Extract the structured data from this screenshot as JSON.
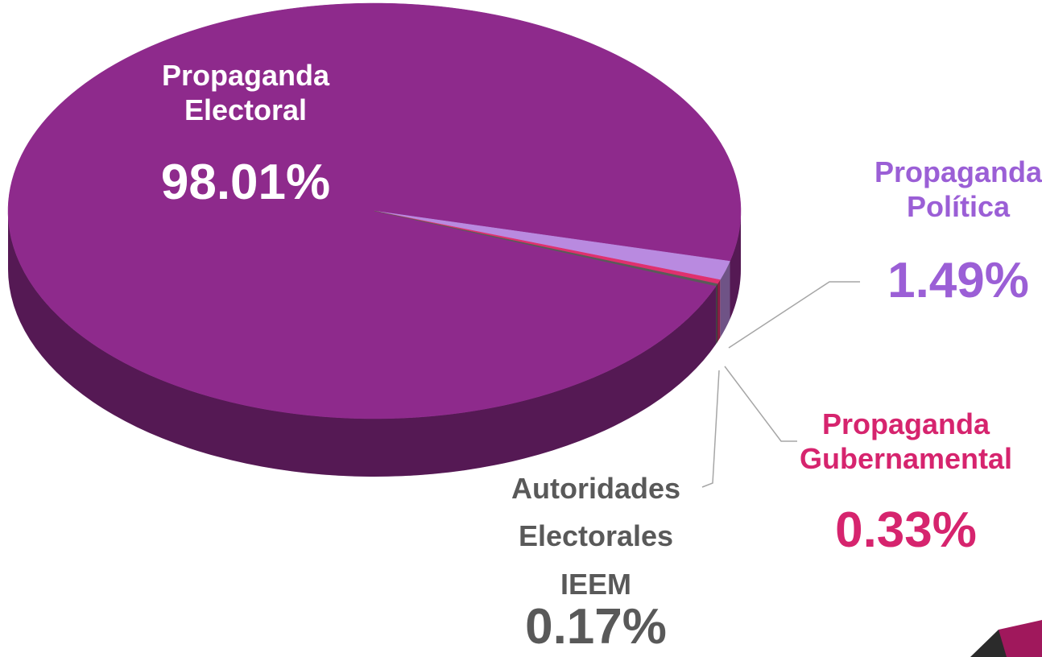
{
  "chart_data": {
    "type": "pie",
    "categories": [
      "Propaganda Electoral",
      "Propaganda Política",
      "Propaganda Gubernamental",
      "Autoridades Electorales IEEM"
    ],
    "values": [
      98.01,
      1.49,
      0.33,
      0.17
    ],
    "value_labels": [
      "98.01%",
      "1.49%",
      "0.33%",
      "0.17%"
    ],
    "colors": [
      "#8e2a8c",
      "#b98ae0",
      "#e0306e",
      "#5a5a5a"
    ],
    "label_colors": [
      "#ffffff",
      "#9b5fd6",
      "#d6246e",
      "#595959"
    ]
  }
}
